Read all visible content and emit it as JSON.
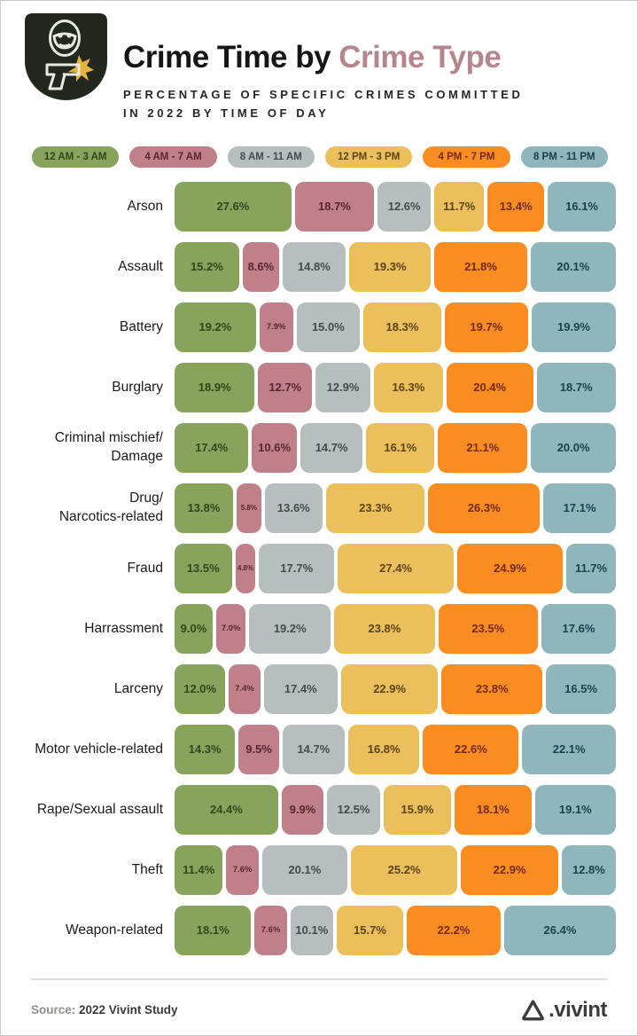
{
  "header": {
    "title_black": "Crime Time by ",
    "title_accent": "Crime Type",
    "subtitle_line1": "PERCENTAGE OF SPECIFIC CRIMES COMMITTED",
    "subtitle_line2": "IN 2022 BY TIME OF DAY",
    "accent_color": "#b5868d",
    "badge_bg": "#22271f",
    "badge_flash_color": "#e5b23c"
  },
  "chart_data": {
    "type": "bar",
    "stacked": true,
    "orientation": "horizontal",
    "unit": "%",
    "legend_position": "top",
    "series": [
      {
        "name": "12 AM - 3 AM",
        "color": "#87a35c",
        "label_color": "#31471c"
      },
      {
        "name": "4 AM - 7 AM",
        "color": "#c0808a",
        "label_color": "#5a2530"
      },
      {
        "name": "8 AM - 11 AM",
        "color": "#b7bebe",
        "label_color": "#414c4c"
      },
      {
        "name": "12 PM - 3 PM",
        "color": "#ebbf5c",
        "label_color": "#5c4410"
      },
      {
        "name": "4 PM - 7 PM",
        "color": "#fa8d21",
        "label_color": "#732a0d"
      },
      {
        "name": "8 PM - 11 PM",
        "color": "#8fb5bd",
        "label_color": "#1b424c"
      }
    ],
    "rows": [
      {
        "category": "Arson",
        "values": [
          27.6,
          18.7,
          12.6,
          11.7,
          13.4,
          16.1
        ]
      },
      {
        "category": "Assault",
        "values": [
          15.2,
          8.6,
          14.8,
          19.3,
          21.8,
          20.1
        ]
      },
      {
        "category": "Battery",
        "values": [
          19.2,
          7.9,
          15.0,
          18.3,
          19.7,
          19.9
        ]
      },
      {
        "category": "Burglary",
        "values": [
          18.9,
          12.7,
          12.9,
          16.3,
          20.4,
          18.7
        ]
      },
      {
        "category": "Criminal mischief/\nDamage",
        "values": [
          17.4,
          10.6,
          14.7,
          16.1,
          21.1,
          20.0
        ]
      },
      {
        "category": "Drug/\nNarcotics-related",
        "values": [
          13.8,
          5.8,
          13.6,
          23.3,
          26.3,
          17.1
        ]
      },
      {
        "category": "Fraud",
        "values": [
          13.5,
          4.8,
          17.7,
          27.4,
          24.9,
          11.7
        ]
      },
      {
        "category": "Harrassment",
        "values": [
          9.0,
          7.0,
          19.2,
          23.8,
          23.5,
          17.6
        ]
      },
      {
        "category": "Larceny",
        "values": [
          12.0,
          7.4,
          17.4,
          22.9,
          23.8,
          16.5
        ]
      },
      {
        "category": "Motor vehicle-related",
        "values": [
          14.3,
          9.5,
          14.7,
          16.8,
          22.6,
          22.1
        ]
      },
      {
        "category": "Rape/Sexual assault",
        "values": [
          24.4,
          9.9,
          12.5,
          15.9,
          18.1,
          19.1
        ]
      },
      {
        "category": "Theft",
        "values": [
          11.4,
          7.6,
          20.1,
          25.2,
          22.9,
          12.8
        ]
      },
      {
        "category": "Weapon-related",
        "values": [
          18.1,
          7.6,
          10.1,
          15.7,
          22.2,
          26.4
        ]
      }
    ]
  },
  "footer": {
    "source_label": "Source:",
    "source_text": " 2022 Vivint Study",
    "brand_text": ".vivint"
  }
}
